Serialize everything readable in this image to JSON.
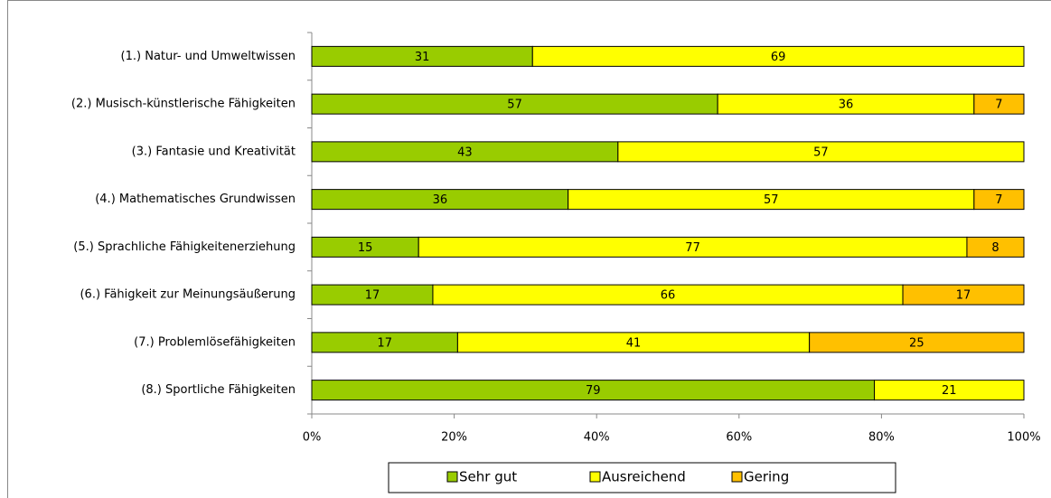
{
  "chart_data": {
    "type": "bar",
    "orientation": "horizontal",
    "stacking": "percent",
    "categories": [
      "(1.) Natur- und Umweltwissen",
      "(2.) Musisch-künstlerische Fähigkeiten",
      "(3.) Fantasie und Kreativität",
      "(4.) Mathematisches Grundwissen",
      "(5.) Sprachliche Fähigkeitenerziehung",
      "(6.) Fähigkeit zur Meinungsäußerung",
      "(7.) Problemlösefähigkeiten",
      "(8.) Sportliche Fähigkeiten"
    ],
    "series": [
      {
        "name": "Sehr gut",
        "color": "#99cc00",
        "values": [
          31,
          57,
          43,
          36,
          15,
          17,
          17,
          79
        ]
      },
      {
        "name": "Ausreichend",
        "color": "#ffff00",
        "values": [
          69,
          36,
          57,
          57,
          77,
          66,
          41,
          21
        ]
      },
      {
        "name": "Gering",
        "color": "#ffc000",
        "values": [
          null,
          7,
          null,
          7,
          8,
          17,
          25,
          null
        ]
      }
    ],
    "xlim": [
      0,
      100
    ],
    "xticks": [
      {
        "value": 0,
        "label": "0%"
      },
      {
        "value": 20,
        "label": "20%"
      },
      {
        "value": 40,
        "label": "40%"
      },
      {
        "value": 60,
        "label": "60%"
      },
      {
        "value": 80,
        "label": "80%"
      },
      {
        "value": 100,
        "label": "100%"
      }
    ],
    "legend": "bottom"
  }
}
